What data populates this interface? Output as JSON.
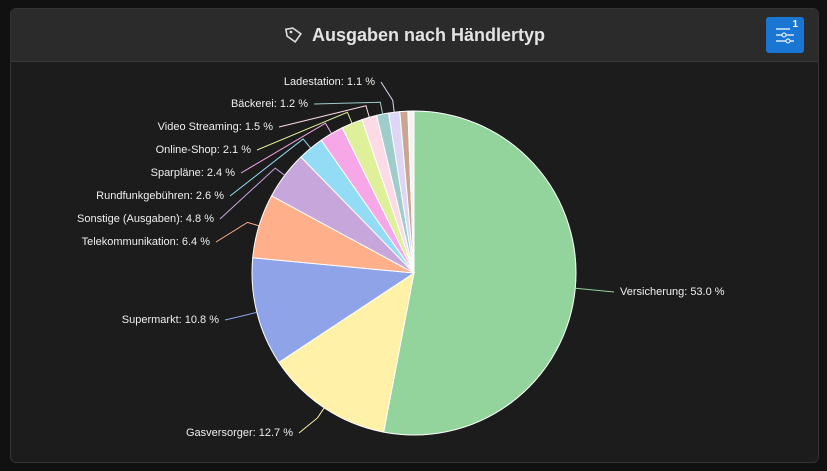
{
  "header": {
    "title": "Ausgaben nach Händlertyp",
    "filter_badge": "1"
  },
  "chart_data": {
    "type": "pie",
    "value_labels": [
      "Versicherung: 53.0 %",
      "Gasversorger: 12.7 %",
      "Supermarkt: 10.8 %",
      "Telekommunikation: 6.4 %",
      "Sonstige (Ausgaben): 4.8 %",
      "Rundfunkgebühren: 2.6 %",
      "Sparpläne: 2.4 %",
      "Online-Shop: 2.1 %",
      "Video Streaming: 1.5 %",
      "Bäckerei: 1.2 %",
      "Ladestation: 1.1 %",
      null,
      null
    ],
    "values": [
      53.0,
      12.7,
      10.8,
      6.4,
      4.8,
      2.6,
      2.4,
      2.1,
      1.5,
      1.2,
      1.1,
      0.8,
      0.6
    ],
    "colors": [
      "#93d49c",
      "#fff1a8",
      "#8fa3e8",
      "#ffb08a",
      "#c7a6dc",
      "#92dcf5",
      "#f7a6e8",
      "#def09a",
      "#fcdbe6",
      "#9ecdcc",
      "#ddd6f5",
      "#c9a592",
      "#f3f3f3"
    ]
  }
}
